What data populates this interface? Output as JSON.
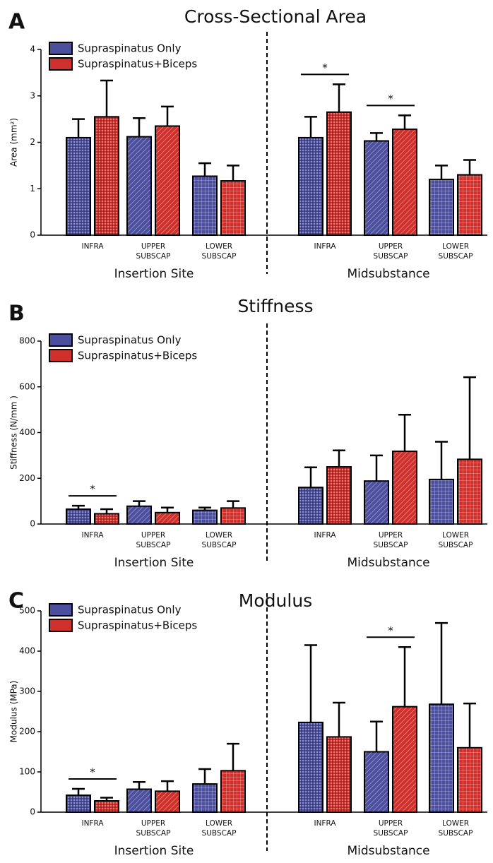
{
  "chart_data": [
    {
      "type": "bar",
      "panel": "A",
      "title": "Cross-Sectional Area",
      "ylabel": "Area (mm²)",
      "groups": [
        "Insertion Site",
        "Midsubstance"
      ],
      "categories": [
        "INFRA",
        "UPPER SUBSCAP",
        "LOWER SUBSCAP",
        "INFRA",
        "UPPER SUBSCAP",
        "LOWER SUBSCAP"
      ],
      "series": [
        {
          "name": "Supraspinatus Only",
          "color": "#4b4f9e",
          "values": [
            2.1,
            2.12,
            1.27,
            2.1,
            2.03,
            1.2
          ],
          "errors": [
            0.4,
            0.4,
            0.28,
            0.45,
            0.17,
            0.3
          ]
        },
        {
          "name": "Supraspinatus+Biceps",
          "color": "#d0302c",
          "values": [
            2.55,
            2.35,
            1.17,
            2.65,
            2.28,
            1.3
          ],
          "errors": [
            0.78,
            0.42,
            0.33,
            0.6,
            0.3,
            0.32
          ]
        }
      ],
      "annotations": [
        {
          "text": "*",
          "category_index": 3
        },
        {
          "text": "*",
          "category_index": 4
        }
      ],
      "ylim": [
        0,
        4
      ],
      "yticks": [
        0,
        1,
        2,
        3,
        4
      ],
      "legend": "upper left"
    },
    {
      "type": "bar",
      "panel": "B",
      "title": "Stiffness",
      "ylabel": "Stiffness (N/mm )",
      "groups": [
        "Insertion Site",
        "Midsubstance"
      ],
      "categories": [
        "INFRA",
        "UPPER SUBSCAP",
        "LOWER SUBSCAP",
        "INFRA",
        "UPPER SUBSCAP",
        "LOWER SUBSCAP"
      ],
      "series": [
        {
          "name": "Supraspinatus Only",
          "color": "#4b4f9e",
          "values": [
            65,
            78,
            60,
            160,
            188,
            195
          ],
          "errors": [
            15,
            22,
            12,
            88,
            112,
            165
          ]
        },
        {
          "name": "Supraspinatus+Biceps",
          "color": "#d0302c",
          "values": [
            45,
            50,
            70,
            250,
            318,
            283
          ],
          "errors": [
            20,
            22,
            30,
            72,
            160,
            359
          ]
        }
      ],
      "annotations": [
        {
          "text": "*",
          "category_index": 0
        }
      ],
      "ylim": [
        0,
        800
      ],
      "yticks": [
        0,
        200,
        400,
        600,
        800
      ],
      "legend": "upper left"
    },
    {
      "type": "bar",
      "panel": "C",
      "title": "Modulus",
      "ylabel": "Modulus (MPa)",
      "groups": [
        "Insertion Site",
        "Midsubstance"
      ],
      "categories": [
        "INFRA",
        "UPPER SUBSCAP",
        "LOWER SUBSCAP",
        "INFRA",
        "UPPER SUBSCAP",
        "LOWER SUBSCAP"
      ],
      "series": [
        {
          "name": "Supraspinatus Only",
          "color": "#4b4f9e",
          "values": [
            42,
            57,
            70,
            223,
            150,
            268
          ],
          "errors": [
            16,
            18,
            37,
            192,
            75,
            202
          ]
        },
        {
          "name": "Supraspinatus+Biceps",
          "color": "#d0302c",
          "values": [
            28,
            52,
            103,
            187,
            262,
            160
          ],
          "errors": [
            8,
            25,
            67,
            85,
            148,
            110
          ]
        }
      ],
      "annotations": [
        {
          "text": "*",
          "category_index": 0
        },
        {
          "text": "*",
          "category_index": 4
        }
      ],
      "ylim": [
        0,
        500
      ],
      "yticks": [
        0,
        100,
        200,
        300,
        400,
        500
      ],
      "legend": "upper left"
    }
  ]
}
